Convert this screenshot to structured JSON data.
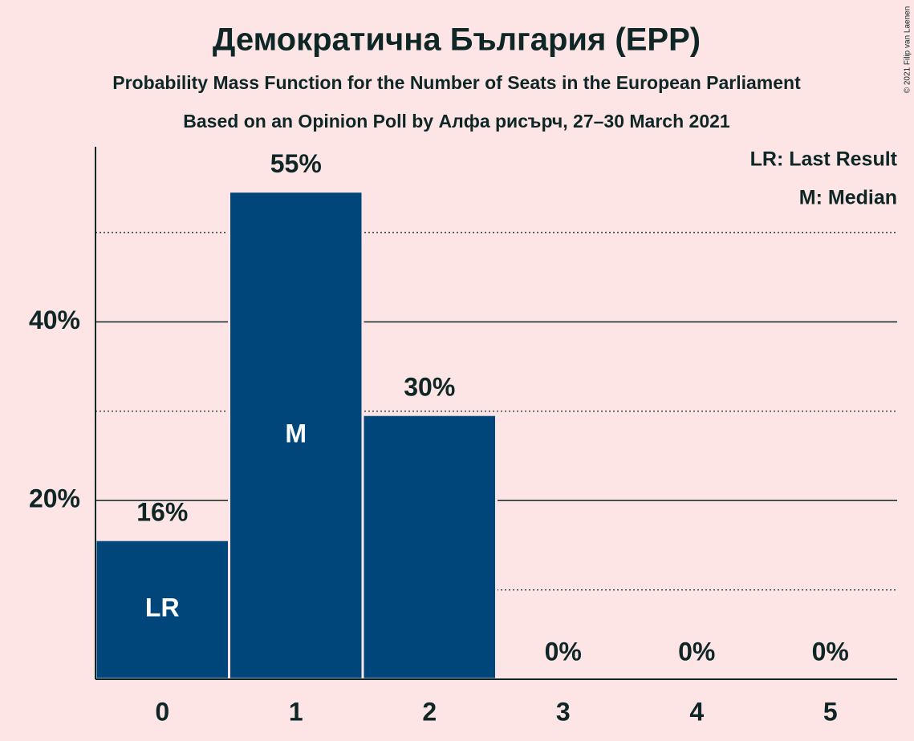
{
  "chart_data": {
    "type": "bar",
    "title": "Демократична България (EPP)",
    "subtitle": "Probability Mass Function for the Number of Seats in the European Parliament",
    "source": "Based on an Opinion Poll by Алфа рисърч, 27–30 March 2021",
    "copyright": "© 2021 Filip van Laenen",
    "categories": [
      "0",
      "1",
      "2",
      "3",
      "4",
      "5"
    ],
    "values": [
      15.6,
      54.6,
      29.6,
      0,
      0,
      0
    ],
    "value_labels": [
      "16%",
      "55%",
      "30%",
      "0%",
      "0%",
      "0%"
    ],
    "color": "#00467a",
    "ylim": [
      0,
      59.6
    ],
    "yticks": [
      {
        "value": 20,
        "label": "20%"
      },
      {
        "value": 40,
        "label": "40%"
      }
    ],
    "minor_gridlines": [
      10,
      30,
      50
    ],
    "grid": true,
    "markers": [
      {
        "text": "LR",
        "at": "0"
      },
      {
        "text": "M",
        "at": "1"
      }
    ],
    "legend": [
      "LR: Last Result",
      "M: Median"
    ],
    "legend_position": "top-right"
  }
}
